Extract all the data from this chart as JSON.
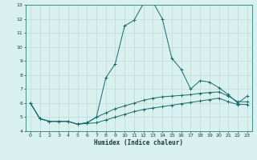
{
  "xlabel": "Humidex (Indice chaleur)",
  "xlim": [
    -0.5,
    23.5
  ],
  "ylim": [
    4,
    13
  ],
  "yticks": [
    4,
    5,
    6,
    7,
    8,
    9,
    10,
    11,
    12,
    13
  ],
  "xticks": [
    0,
    1,
    2,
    3,
    4,
    5,
    6,
    7,
    8,
    9,
    10,
    11,
    12,
    13,
    14,
    15,
    16,
    17,
    18,
    19,
    20,
    21,
    22,
    23
  ],
  "bg_color": "#d8f0ee",
  "grid_color": "#c0d8d8",
  "line_color": "#1a6b6b",
  "line1_x": [
    0,
    1,
    2,
    3,
    4,
    5,
    6,
    7,
    8,
    9,
    10,
    11,
    12,
    13,
    14,
    15,
    16,
    17,
    18,
    19,
    20,
    21,
    22,
    23
  ],
  "line1_y": [
    6.0,
    4.9,
    4.7,
    4.7,
    4.7,
    4.5,
    4.6,
    5.0,
    7.8,
    8.8,
    11.5,
    11.9,
    13.1,
    13.2,
    12.0,
    9.2,
    8.4,
    7.0,
    7.6,
    7.5,
    7.1,
    6.6,
    6.0,
    6.5
  ],
  "line2_x": [
    0,
    1,
    2,
    3,
    4,
    5,
    6,
    7,
    8,
    9,
    10,
    11,
    12,
    13,
    14,
    15,
    16,
    17,
    18,
    19,
    20,
    21,
    22,
    23
  ],
  "line2_y": [
    6.0,
    4.9,
    4.7,
    4.7,
    4.7,
    4.5,
    4.6,
    5.0,
    5.3,
    5.6,
    5.8,
    6.0,
    6.2,
    6.35,
    6.45,
    6.5,
    6.55,
    6.6,
    6.7,
    6.75,
    6.8,
    6.5,
    6.1,
    6.1
  ],
  "line3_x": [
    0,
    1,
    2,
    3,
    4,
    5,
    6,
    7,
    8,
    9,
    10,
    11,
    12,
    13,
    14,
    15,
    16,
    17,
    18,
    19,
    20,
    21,
    22,
    23
  ],
  "line3_y": [
    6.0,
    4.9,
    4.7,
    4.7,
    4.7,
    4.5,
    4.55,
    4.6,
    4.8,
    5.0,
    5.2,
    5.4,
    5.55,
    5.65,
    5.75,
    5.85,
    5.95,
    6.05,
    6.15,
    6.25,
    6.35,
    6.1,
    5.9,
    5.9
  ]
}
